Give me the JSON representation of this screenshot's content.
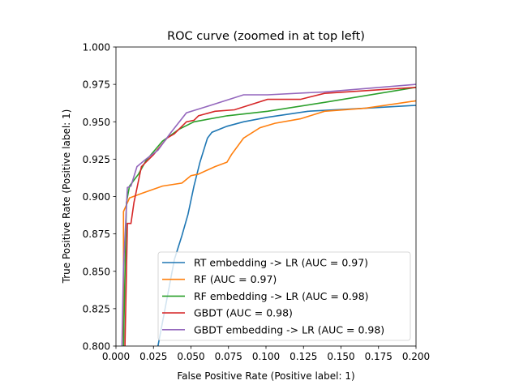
{
  "chart_data": {
    "type": "line",
    "title": "ROC curve (zoomed in at top left)",
    "xlabel": "False Positive Rate (Positive label: 1)",
    "ylabel": "True Positive Rate (Positive label: 1)",
    "xlim": [
      0,
      0.2
    ],
    "ylim": [
      0.8,
      1.0
    ],
    "xticks": [
      "0.000",
      "0.025",
      "0.050",
      "0.075",
      "0.100",
      "0.125",
      "0.150",
      "0.175",
      "0.200"
    ],
    "yticks": [
      "0.800",
      "0.825",
      "0.850",
      "0.875",
      "0.900",
      "0.925",
      "0.950",
      "0.975",
      "1.000"
    ],
    "grid": false,
    "legend_position": "lower-right",
    "series": [
      {
        "name": "RT embedding -> LR (AUC = 0.97)",
        "color": "#1f77b4",
        "points": [
          [
            0.028,
            0.8
          ],
          [
            0.039,
            0.858
          ],
          [
            0.044,
            0.874
          ],
          [
            0.048,
            0.888
          ],
          [
            0.052,
            0.907
          ],
          [
            0.056,
            0.923
          ],
          [
            0.061,
            0.939
          ],
          [
            0.064,
            0.943
          ],
          [
            0.074,
            0.947
          ],
          [
            0.085,
            0.95
          ],
          [
            0.101,
            0.953
          ],
          [
            0.128,
            0.957
          ],
          [
            0.166,
            0.959
          ],
          [
            0.2,
            0.961
          ]
        ]
      },
      {
        "name": "RF (AUC = 0.97)",
        "color": "#ff7f0e",
        "points": [
          [
            0.005,
            0.8
          ],
          [
            0.005,
            0.89
          ],
          [
            0.009,
            0.899
          ],
          [
            0.017,
            0.902
          ],
          [
            0.031,
            0.907
          ],
          [
            0.044,
            0.909
          ],
          [
            0.05,
            0.914
          ],
          [
            0.055,
            0.915
          ],
          [
            0.066,
            0.92
          ],
          [
            0.074,
            0.923
          ],
          [
            0.077,
            0.928
          ],
          [
            0.085,
            0.939
          ],
          [
            0.096,
            0.946
          ],
          [
            0.106,
            0.949
          ],
          [
            0.123,
            0.952
          ],
          [
            0.139,
            0.957
          ],
          [
            0.166,
            0.959
          ],
          [
            0.2,
            0.964
          ]
        ]
      },
      {
        "name": "RF embedding -> LR (AUC = 0.98)",
        "color": "#2ca02c",
        "points": [
          [
            0.005,
            0.8
          ],
          [
            0.007,
            0.896
          ],
          [
            0.009,
            0.907
          ],
          [
            0.015,
            0.915
          ],
          [
            0.02,
            0.924
          ],
          [
            0.031,
            0.937
          ],
          [
            0.042,
            0.945
          ],
          [
            0.052,
            0.95
          ],
          [
            0.074,
            0.954
          ],
          [
            0.101,
            0.957
          ],
          [
            0.139,
            0.963
          ],
          [
            0.2,
            0.973
          ]
        ]
      },
      {
        "name": "GBDT (AUC = 0.98)",
        "color": "#d62728",
        "points": [
          [
            0.006,
            0.8
          ],
          [
            0.0076,
            0.882
          ],
          [
            0.01,
            0.882
          ],
          [
            0.012,
            0.896
          ],
          [
            0.017,
            0.92
          ],
          [
            0.025,
            0.928
          ],
          [
            0.034,
            0.939
          ],
          [
            0.039,
            0.942
          ],
          [
            0.047,
            0.95
          ],
          [
            0.052,
            0.951
          ],
          [
            0.055,
            0.954
          ],
          [
            0.066,
            0.957
          ],
          [
            0.079,
            0.958
          ],
          [
            0.101,
            0.965
          ],
          [
            0.123,
            0.965
          ],
          [
            0.139,
            0.969
          ],
          [
            0.2,
            0.973
          ]
        ]
      },
      {
        "name": "GBDT embedding -> LR (AUC = 0.98)",
        "color": "#9467bd",
        "points": [
          [
            0.004,
            0.8
          ],
          [
            0.005,
            0.853
          ],
          [
            0.0076,
            0.906
          ],
          [
            0.01,
            0.907
          ],
          [
            0.014,
            0.92
          ],
          [
            0.02,
            0.925
          ],
          [
            0.028,
            0.931
          ],
          [
            0.036,
            0.942
          ],
          [
            0.047,
            0.956
          ],
          [
            0.063,
            0.961
          ],
          [
            0.085,
            0.968
          ],
          [
            0.101,
            0.968
          ],
          [
            0.139,
            0.97
          ],
          [
            0.2,
            0.975
          ]
        ]
      }
    ]
  }
}
